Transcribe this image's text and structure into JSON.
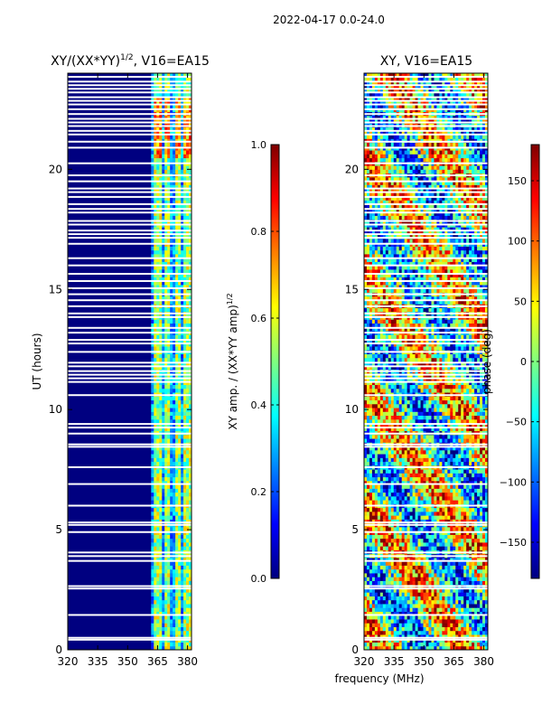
{
  "figure_title": "2022-04-17 0.0-24.0",
  "chart_data": [
    {
      "type": "heatmap",
      "title": "XY/(XX*YY)^1/2, V16=EA15",
      "title_main": "XY/(XX*YY)",
      "title_exp": "1/2",
      "title_tail": ", V16=EA15",
      "xlabel": "",
      "ylabel": "UT (hours)",
      "xlim": [
        320,
        382
      ],
      "ylim": [
        0,
        24
      ],
      "xticks": [
        320,
        335,
        350,
        365,
        380
      ],
      "yticks": [
        0,
        5,
        10,
        15,
        20
      ],
      "colorbar": {
        "label": "XY amp. / (XX*YY amp)^1/2",
        "label_main": "XY amp. / (XX*YY amp)",
        "label_exp": "1/2",
        "range": [
          0,
          1
        ],
        "ticks": [
          "0.0",
          "0.2",
          "0.4",
          "0.6",
          "0.8",
          "1.0"
        ],
        "tick_values": [
          0,
          0.2,
          0.4,
          0.6,
          0.8,
          1.0
        ]
      }
    },
    {
      "type": "heatmap",
      "title": "XY, V16=EA15",
      "xlabel": "frequency (MHz)",
      "ylabel": "",
      "xlim": [
        320,
        382
      ],
      "ylim": [
        0,
        24
      ],
      "xticks": [
        320,
        335,
        350,
        365,
        380
      ],
      "yticks": [
        0,
        5,
        10,
        15,
        20
      ],
      "colorbar": {
        "label": "phase (deg)",
        "range": [
          -180,
          180
        ],
        "ticks": [
          "−150",
          "−100",
          "−50",
          "0",
          "50",
          "100",
          "150"
        ],
        "tick_values": [
          -150,
          -100,
          -50,
          0,
          50,
          100,
          150
        ]
      }
    }
  ],
  "colormap": "jet",
  "jet_stops": [
    "#00007f",
    "#0000ff",
    "#007fff",
    "#00ffff",
    "#7fff7f",
    "#ffff00",
    "#ff7f00",
    "#ff0000",
    "#7f0000"
  ],
  "flagged_hours": [
    0.42,
    0.5,
    1.45,
    2.55,
    2.65,
    3.7,
    3.9,
    4.05,
    4.9,
    5.2,
    5.3,
    6.0,
    6.9,
    7.6,
    8.45,
    8.55,
    9.0,
    9.25,
    9.4,
    10.6,
    11.15,
    11.3,
    11.45,
    11.6,
    11.8,
    11.95,
    12.4,
    12.75,
    12.9,
    13.2,
    13.4,
    13.85,
    14.0,
    14.3,
    14.55,
    14.8,
    15.05,
    15.35,
    15.65,
    16.0,
    16.3,
    16.9,
    17.15,
    17.3,
    17.45,
    17.7,
    17.85,
    18.2,
    18.35,
    18.55,
    18.85,
    19.05,
    19.2,
    19.5,
    19.75,
    20.25,
    20.9,
    21.15,
    21.45,
    21.6,
    21.8,
    21.95,
    22.1,
    22.3,
    22.5,
    22.7,
    22.85,
    23.0,
    23.2,
    23.35,
    23.5,
    23.65,
    23.85
  ],
  "bright_channels_mhz": [
    [
      363.5,
      366.5
    ],
    [
      368.0,
      371.0
    ],
    [
      373.5,
      376.5
    ],
    [
      378.0,
      381.5
    ]
  ]
}
